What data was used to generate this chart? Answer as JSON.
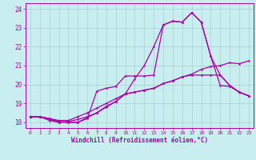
{
  "xlabel": "Windchill (Refroidissement éolien,°C)",
  "xlim": [
    -0.5,
    23.5
  ],
  "ylim": [
    17.7,
    24.3
  ],
  "xticks": [
    0,
    1,
    2,
    3,
    4,
    5,
    6,
    7,
    8,
    9,
    10,
    11,
    12,
    13,
    14,
    15,
    16,
    17,
    18,
    19,
    20,
    21,
    22,
    23
  ],
  "yticks": [
    18,
    19,
    20,
    21,
    22,
    23,
    24
  ],
  "background_color": "#c8eef0",
  "grid_color": "#a8cfd4",
  "line_color": "#aa00aa",
  "line1": [
    18.3,
    18.3,
    18.2,
    18.0,
    18.0,
    18.0,
    18.2,
    19.65,
    19.8,
    19.9,
    20.45,
    20.45,
    20.45,
    20.5,
    23.15,
    23.35,
    23.3,
    23.8,
    23.3,
    21.5,
    19.95,
    19.9,
    19.6,
    19.4
  ],
  "line2": [
    18.3,
    18.3,
    18.15,
    18.05,
    18.0,
    18.0,
    18.25,
    18.5,
    18.8,
    19.1,
    19.5,
    20.3,
    21.0,
    22.0,
    23.15,
    23.35,
    23.3,
    23.8,
    23.3,
    21.5,
    20.5,
    19.95,
    19.6,
    19.4
  ],
  "line3": [
    18.3,
    18.3,
    18.1,
    18.0,
    18.05,
    18.15,
    18.3,
    18.5,
    18.85,
    19.1,
    19.5,
    19.6,
    19.7,
    19.8,
    20.05,
    20.2,
    20.4,
    20.5,
    20.5,
    20.5,
    20.5,
    19.95,
    19.6,
    19.4
  ],
  "line4": [
    18.3,
    18.3,
    18.2,
    18.1,
    18.1,
    18.3,
    18.5,
    18.75,
    19.0,
    19.25,
    19.5,
    19.6,
    19.7,
    19.8,
    20.05,
    20.2,
    20.4,
    20.55,
    20.8,
    20.95,
    21.0,
    21.15,
    21.1,
    21.25
  ]
}
